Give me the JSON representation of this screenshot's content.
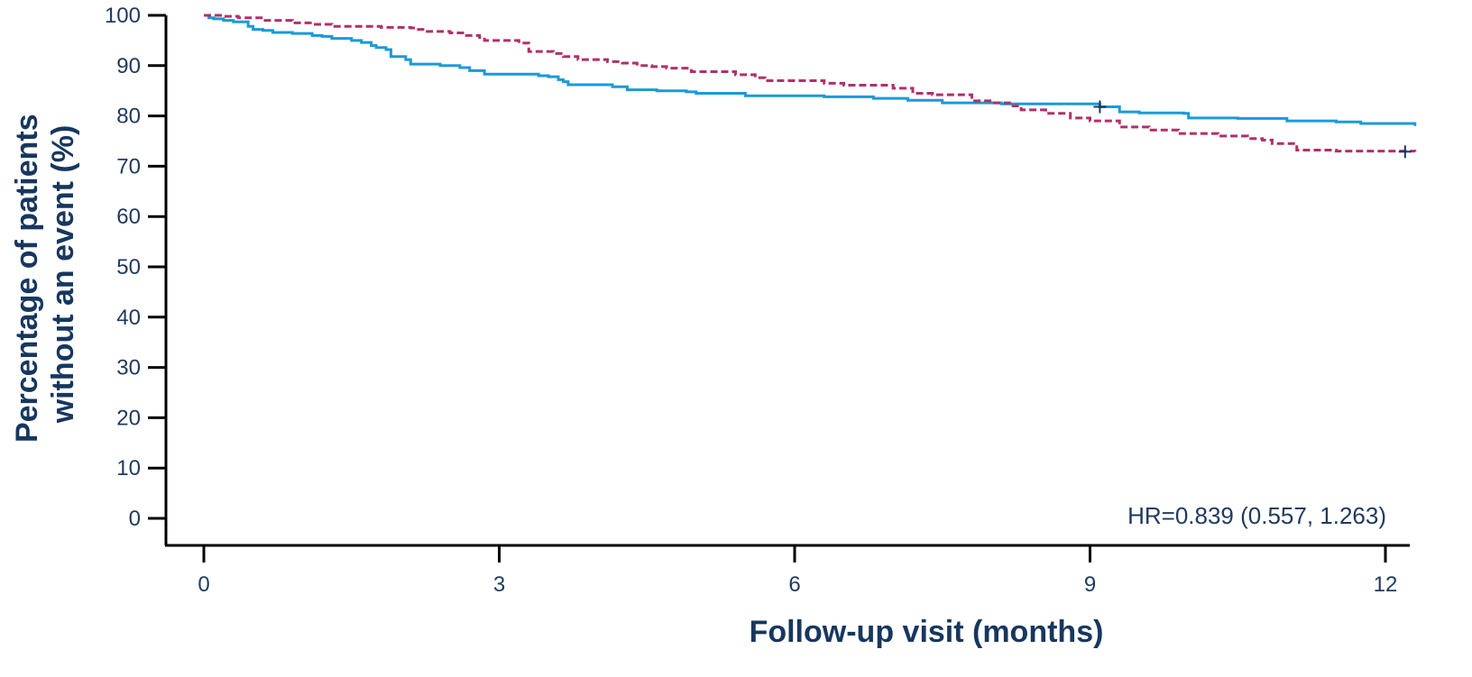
{
  "chart_data": {
    "type": "line",
    "xlabel": "Follow-up visit (months)",
    "ylabel_lines": [
      "Percentage of patients",
      "without an event (%)"
    ],
    "x_ticks": [
      0,
      3,
      6,
      9,
      12
    ],
    "x_tick_labels": [
      "0",
      "3",
      "6",
      "9",
      "12"
    ],
    "y_ticks": [
      0,
      10,
      20,
      30,
      40,
      50,
      60,
      70,
      80,
      90,
      100
    ],
    "y_tick_labels": [
      "0",
      "10",
      "20",
      "30",
      "40",
      "50",
      "60",
      "70",
      "80",
      "90",
      "100"
    ],
    "xlim": [
      -0.4,
      12.3
    ],
    "ylim": [
      -5,
      101
    ],
    "grid": false,
    "annotation": "HR=0.839 (0.557, 1.263)",
    "series": [
      {
        "color": "#1b9ad6",
        "dash": "solid",
        "x": [
          0,
          0.05,
          0.1,
          0.2,
          0.3,
          0.45,
          0.5,
          0.6,
          0.7,
          0.9,
          1.1,
          1.2,
          1.3,
          1.5,
          1.6,
          1.7,
          1.75,
          1.85,
          1.9,
          2.05,
          2.1,
          2.4,
          2.6,
          2.7,
          2.85,
          3.4,
          3.5,
          3.6,
          3.65,
          3.7,
          4.15,
          4.3,
          4.6,
          4.9,
          5.0,
          5.5,
          6.3,
          6.8,
          7.15,
          7.5,
          8.1,
          9.1,
          9.3,
          9.5,
          9.95,
          10.0,
          10.5,
          11.0,
          11.5,
          11.75,
          12.3
        ],
        "y": [
          100,
          99.5,
          99.3,
          99.0,
          98.7,
          97.8,
          97.2,
          97.0,
          96.6,
          96.4,
          96.0,
          95.8,
          95.4,
          95.0,
          94.6,
          94.0,
          93.6,
          93.2,
          91.8,
          91.2,
          90.3,
          90.0,
          89.6,
          89.0,
          88.3,
          88.0,
          87.8,
          87.2,
          86.8,
          86.2,
          85.8,
          85.2,
          85.0,
          84.8,
          84.5,
          84.0,
          83.8,
          83.5,
          83.1,
          82.6,
          82.4,
          81.8,
          80.8,
          80.6,
          80.5,
          79.6,
          79.5,
          79.0,
          78.8,
          78.5,
          78.0
        ],
        "censored": [
          [
            9.1,
            81.8
          ]
        ]
      },
      {
        "color": "#b1306a",
        "dash": "dashed",
        "x": [
          0,
          0.2,
          0.35,
          0.6,
          0.9,
          1.1,
          1.3,
          1.8,
          2.1,
          2.15,
          2.25,
          2.5,
          2.65,
          2.8,
          2.85,
          3.2,
          3.3,
          3.55,
          3.65,
          3.8,
          4.1,
          4.25,
          4.4,
          4.55,
          4.7,
          4.95,
          5.4,
          5.6,
          5.7,
          6.3,
          6.5,
          7.0,
          7.2,
          7.4,
          7.8,
          8.0,
          8.2,
          8.3,
          8.55,
          8.8,
          9.0,
          9.3,
          9.6,
          9.9,
          10.3,
          10.6,
          10.75,
          10.85,
          11.1,
          11.5,
          12.3
        ],
        "y": [
          100,
          99.8,
          99.5,
          99.0,
          98.5,
          98.2,
          97.8,
          97.6,
          97.5,
          97.2,
          96.8,
          96.5,
          96.0,
          95.6,
          95.0,
          94.5,
          92.8,
          92.4,
          91.8,
          91.2,
          90.8,
          90.5,
          90.0,
          89.8,
          89.5,
          88.8,
          88.2,
          87.6,
          87.0,
          86.5,
          86.1,
          85.5,
          84.5,
          84.2,
          83.0,
          82.6,
          82.0,
          81.2,
          80.5,
          79.6,
          79.0,
          77.8,
          77.2,
          76.5,
          76.0,
          75.5,
          75.2,
          74.5,
          73.2,
          73.0,
          72.9
        ],
        "censored": [
          [
            12.2,
            72.9
          ]
        ]
      }
    ]
  }
}
